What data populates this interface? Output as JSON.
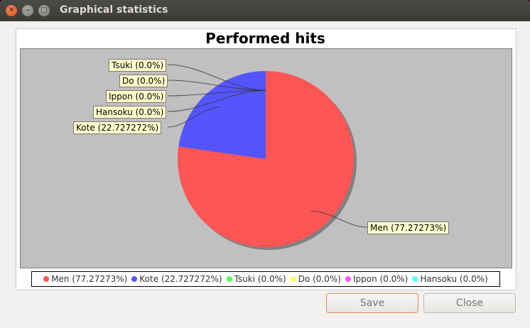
{
  "window": {
    "title": "Graphical statistics"
  },
  "chart_data": {
    "type": "pie",
    "title": "Performed hits",
    "slices": [
      {
        "name": "Men",
        "value": 77.27273,
        "label": "Men (77.27273%)",
        "color": "#ff5555"
      },
      {
        "name": "Kote",
        "value": 22.727272,
        "label": "Kote (22.727272%)",
        "color": "#5555ff"
      },
      {
        "name": "Tsuki",
        "value": 0.0,
        "label": "Tsuki (0.0%)",
        "color": "#55ff55"
      },
      {
        "name": "Do",
        "value": 0.0,
        "label": "Do (0.0%)",
        "color": "#ffff55"
      },
      {
        "name": "Ippon",
        "value": 0.0,
        "label": "Ippon (0.0%)",
        "color": "#ff55ff"
      },
      {
        "name": "Hansoku",
        "value": 0.0,
        "label": "Hansoku (0.0%)",
        "color": "#55ffff"
      }
    ],
    "legend_position": "bottom"
  },
  "buttons": {
    "save": "Save",
    "close": "Close"
  },
  "colors": {
    "plot_background": "#c0c0c0",
    "label_background": "#ffffcc",
    "save_border": "#e0895a"
  }
}
